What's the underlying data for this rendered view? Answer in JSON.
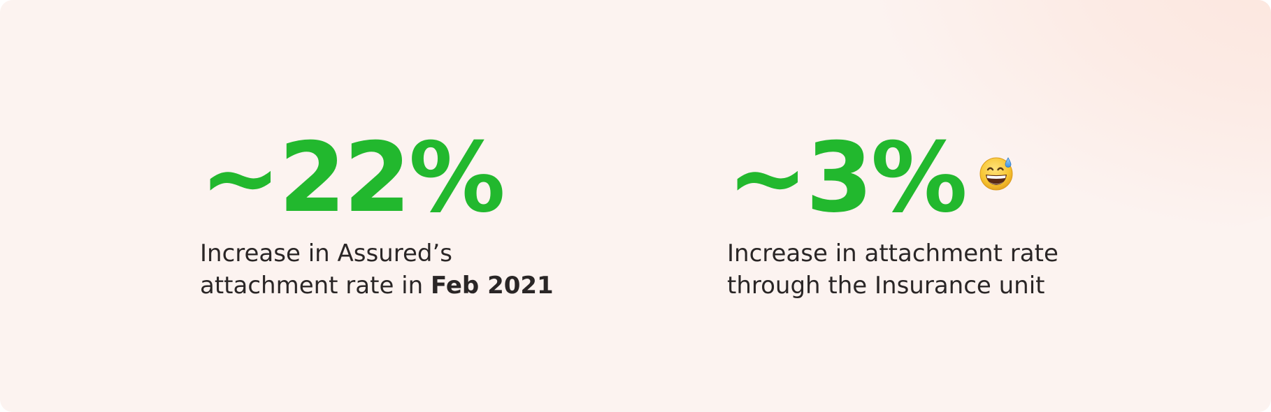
{
  "accent_color": "#22b82e",
  "stats": [
    {
      "value": "~22%",
      "description_line1": "Increase in Assured’s",
      "description_line2_prefix": "attachment rate in ",
      "description_line2_bold": "Feb 2021"
    },
    {
      "value": "~3%",
      "description_line1": "Increase in attachment rate",
      "description_line2": "through the Insurance unit",
      "emoji": "grinning-face-with-sweat-emoji"
    }
  ]
}
